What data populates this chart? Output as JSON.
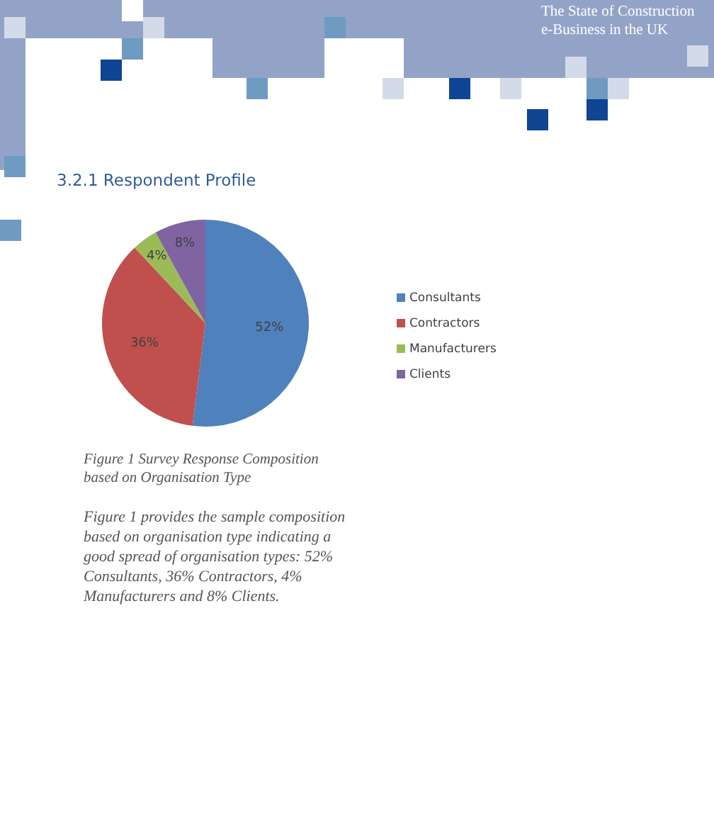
{
  "chart_data": {
    "type": "pie",
    "title": "3.2.1  Respondent Profile",
    "categories": [
      "Consultants",
      "Contractors",
      "Manufacturers",
      "Clients"
    ],
    "values": [
      52,
      36,
      4,
      8
    ],
    "colors": [
      "#4f81bd",
      "#c0504d",
      "#9bbb59",
      "#8064a2"
    ],
    "value_labels": [
      "52%",
      "36%",
      "4%",
      "8%"
    ],
    "legend": "right",
    "annotations": [
      "The State of Construction e-Business in the UK",
      "Figure 1 Survey Response Composition based on Organisation Type",
      "Figure 1 provides the sample composition based on organisation type indicating a good spread of organisation types: 52% Consultants, 36% Contractors, 4% Manufacturers and 8% Clients."
    ]
  }
}
